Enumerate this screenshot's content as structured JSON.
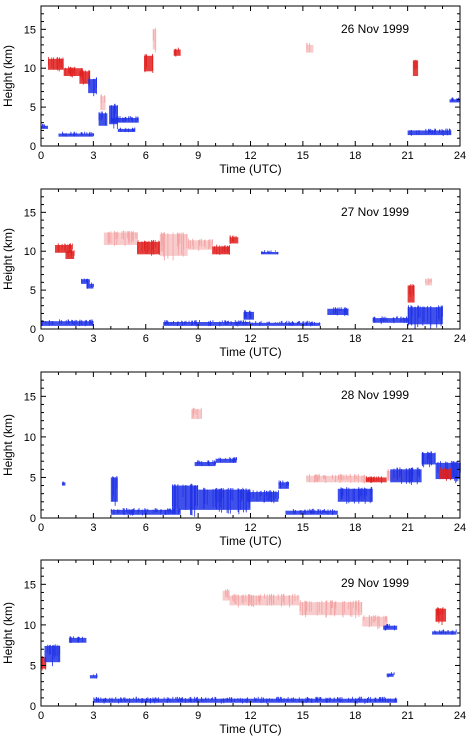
{
  "figure": {
    "panel_count": 4,
    "colors": {
      "red_echo": "#e0201f",
      "light_red_echo": "#f3a3a3",
      "blue_echo": "#1f31e6"
    }
  },
  "chart_data": [
    {
      "type": "heatmap",
      "title": "26 Nov 1999",
      "xlabel": "Time (UTC)",
      "ylabel": "Height (km)",
      "xlim": [
        0,
        24
      ],
      "ylim": [
        0,
        18
      ],
      "xticks": [
        "0",
        "3",
        "6",
        "9",
        "12",
        "15",
        "18",
        "21",
        "24"
      ],
      "yticks": [
        "0",
        "5",
        "10",
        "15"
      ],
      "features": [
        {
          "color": "red",
          "t0": 0.4,
          "t1": 1.3,
          "z0": 9.8,
          "z1": 11.2
        },
        {
          "color": "red",
          "t0": 1.3,
          "t1": 2.4,
          "z0": 9.0,
          "z1": 10.0
        },
        {
          "color": "red",
          "t0": 2.2,
          "t1": 2.8,
          "z0": 8.0,
          "z1": 9.6
        },
        {
          "color": "blue",
          "t0": 2.7,
          "t1": 3.2,
          "z0": 6.8,
          "z1": 8.6
        },
        {
          "color": "blue",
          "t0": 3.3,
          "t1": 3.8,
          "z0": 2.6,
          "z1": 4.2
        },
        {
          "color": "blue",
          "t0": 3.9,
          "t1": 4.4,
          "z0": 2.8,
          "z1": 5.2
        },
        {
          "color": "light_red",
          "t0": 3.4,
          "t1": 3.7,
          "z0": 4.6,
          "z1": 6.4
        },
        {
          "color": "blue",
          "t0": 4.0,
          "t1": 5.6,
          "z0": 3.0,
          "z1": 3.6
        },
        {
          "color": "red",
          "t0": 5.9,
          "t1": 6.4,
          "z0": 9.6,
          "z1": 11.6
        },
        {
          "color": "light_red",
          "t0": 6.4,
          "t1": 6.6,
          "z0": 12.4,
          "z1": 15.0
        },
        {
          "color": "red",
          "t0": 7.6,
          "t1": 8.0,
          "z0": 11.6,
          "z1": 12.4
        },
        {
          "color": "blue",
          "t0": 0.0,
          "t1": 0.4,
          "z0": 2.2,
          "z1": 2.6
        },
        {
          "color": "blue",
          "t0": 1.0,
          "t1": 3.0,
          "z0": 1.2,
          "z1": 1.6
        },
        {
          "color": "blue",
          "t0": 4.4,
          "t1": 5.4,
          "z0": 1.8,
          "z1": 2.2
        },
        {
          "color": "blue",
          "t0": 21.0,
          "t1": 23.5,
          "z0": 1.4,
          "z1": 2.0
        },
        {
          "color": "red",
          "t0": 21.3,
          "t1": 21.6,
          "z0": 9.0,
          "z1": 11.0
        },
        {
          "color": "light_red",
          "t0": 15.2,
          "t1": 15.6,
          "z0": 12.0,
          "z1": 13.0
        },
        {
          "color": "blue",
          "t0": 23.4,
          "t1": 24.0,
          "z0": 5.6,
          "z1": 6.0
        }
      ]
    },
    {
      "type": "heatmap",
      "title": "27 Nov 1999",
      "xlabel": "Time (UTC)",
      "ylabel": "Height (km)",
      "xlim": [
        0,
        24
      ],
      "ylim": [
        0,
        18
      ],
      "xticks": [
        "0",
        "3",
        "6",
        "9",
        "12",
        "15",
        "18",
        "21",
        "24"
      ],
      "yticks": [
        "0",
        "5",
        "10",
        "15"
      ],
      "features": [
        {
          "color": "red",
          "t0": 0.8,
          "t1": 1.8,
          "z0": 9.8,
          "z1": 10.8
        },
        {
          "color": "red",
          "t0": 1.4,
          "t1": 1.9,
          "z0": 9.0,
          "z1": 10.0
        },
        {
          "color": "light_red",
          "t0": 3.6,
          "t1": 5.5,
          "z0": 10.8,
          "z1": 12.4
        },
        {
          "color": "red",
          "t0": 5.5,
          "t1": 6.8,
          "z0": 9.6,
          "z1": 11.2
        },
        {
          "color": "light_red",
          "t0": 6.8,
          "t1": 8.4,
          "z0": 9.4,
          "z1": 12.2
        },
        {
          "color": "light_red",
          "t0": 8.4,
          "t1": 9.8,
          "z0": 10.2,
          "z1": 11.4
        },
        {
          "color": "red",
          "t0": 9.8,
          "t1": 10.8,
          "z0": 9.6,
          "z1": 10.6
        },
        {
          "color": "red",
          "t0": 10.8,
          "t1": 11.3,
          "z0": 11.0,
          "z1": 11.8
        },
        {
          "color": "blue",
          "t0": 12.6,
          "t1": 13.6,
          "z0": 9.6,
          "z1": 9.9
        },
        {
          "color": "blue",
          "t0": 2.3,
          "t1": 2.8,
          "z0": 5.8,
          "z1": 6.4
        },
        {
          "color": "blue",
          "t0": 2.6,
          "t1": 3.0,
          "z0": 5.2,
          "z1": 5.8
        },
        {
          "color": "blue",
          "t0": 0.0,
          "t1": 3.0,
          "z0": 0.4,
          "z1": 1.0
        },
        {
          "color": "blue",
          "t0": 7.0,
          "t1": 12.0,
          "z0": 0.4,
          "z1": 0.9
        },
        {
          "color": "blue",
          "t0": 11.6,
          "t1": 12.2,
          "z0": 1.2,
          "z1": 2.2
        },
        {
          "color": "blue",
          "t0": 12.0,
          "t1": 16.0,
          "z0": 0.4,
          "z1": 0.8
        },
        {
          "color": "blue",
          "t0": 16.4,
          "t1": 17.6,
          "z0": 1.8,
          "z1": 2.6
        },
        {
          "color": "blue",
          "t0": 19.0,
          "t1": 21.0,
          "z0": 0.8,
          "z1": 1.4
        },
        {
          "color": "blue",
          "t0": 21.0,
          "t1": 23.0,
          "z0": 0.6,
          "z1": 2.8
        },
        {
          "color": "red",
          "t0": 21.0,
          "t1": 21.4,
          "z0": 3.4,
          "z1": 5.6
        },
        {
          "color": "light_red",
          "t0": 22.0,
          "t1": 22.4,
          "z0": 5.6,
          "z1": 6.4
        }
      ]
    },
    {
      "type": "heatmap",
      "title": "28 Nov 1999",
      "xlabel": "Time (UTC)",
      "ylabel": "Height (km)",
      "xlim": [
        0,
        24
      ],
      "ylim": [
        0,
        18
      ],
      "xticks": [
        "0",
        "3",
        "6",
        "9",
        "12",
        "15",
        "18",
        "21",
        "24"
      ],
      "yticks": [
        "0",
        "5",
        "10",
        "15"
      ],
      "features": [
        {
          "color": "light_red",
          "t0": 8.6,
          "t1": 9.2,
          "z0": 12.2,
          "z1": 13.4
        },
        {
          "color": "blue",
          "t0": 1.2,
          "t1": 1.4,
          "z0": 4.0,
          "z1": 4.4
        },
        {
          "color": "blue",
          "t0": 4.0,
          "t1": 4.4,
          "z0": 2.0,
          "z1": 5.0
        },
        {
          "color": "blue",
          "t0": 4.0,
          "t1": 8.0,
          "z0": 0.4,
          "z1": 1.0
        },
        {
          "color": "blue",
          "t0": 8.8,
          "t1": 10.0,
          "z0": 6.4,
          "z1": 6.9
        },
        {
          "color": "blue",
          "t0": 10.0,
          "t1": 11.2,
          "z0": 6.8,
          "z1": 7.3
        },
        {
          "color": "blue",
          "t0": 7.5,
          "t1": 9.0,
          "z0": 1.0,
          "z1": 4.0
        },
        {
          "color": "blue",
          "t0": 9.0,
          "t1": 12.0,
          "z0": 1.0,
          "z1": 3.5
        },
        {
          "color": "blue",
          "t0": 11.8,
          "t1": 13.6,
          "z0": 2.0,
          "z1": 3.2
        },
        {
          "color": "blue",
          "t0": 13.6,
          "t1": 14.2,
          "z0": 3.6,
          "z1": 4.4
        },
        {
          "color": "blue",
          "t0": 14.0,
          "t1": 17.0,
          "z0": 0.4,
          "z1": 0.9
        },
        {
          "color": "blue",
          "t0": 17.0,
          "t1": 19.0,
          "z0": 2.0,
          "z1": 3.6
        },
        {
          "color": "light_red",
          "t0": 15.2,
          "t1": 18.6,
          "z0": 4.4,
          "z1": 5.2
        },
        {
          "color": "red",
          "t0": 18.6,
          "t1": 19.8,
          "z0": 4.4,
          "z1": 5.0
        },
        {
          "color": "light_red",
          "t0": 19.8,
          "t1": 21.2,
          "z0": 4.6,
          "z1": 5.8
        },
        {
          "color": "blue",
          "t0": 20.0,
          "t1": 21.8,
          "z0": 4.4,
          "z1": 6.0
        },
        {
          "color": "blue",
          "t0": 21.8,
          "t1": 22.6,
          "z0": 6.6,
          "z1": 8.0
        },
        {
          "color": "blue",
          "t0": 22.6,
          "t1": 24.0,
          "z0": 4.8,
          "z1": 6.8
        },
        {
          "color": "red",
          "t0": 22.8,
          "t1": 23.5,
          "z0": 4.8,
          "z1": 6.0
        }
      ]
    },
    {
      "type": "heatmap",
      "title": "29 Nov 1999",
      "xlabel": "Time (UTC)",
      "ylabel": "Height (km)",
      "xlim": [
        0,
        24
      ],
      "ylim": [
        0,
        18
      ],
      "xticks": [
        "0",
        "3",
        "6",
        "9",
        "12",
        "15",
        "18",
        "21",
        "24"
      ],
      "yticks": [
        "0",
        "5",
        "10",
        "15"
      ],
      "features": [
        {
          "color": "red",
          "t0": 0.0,
          "t1": 0.3,
          "z0": 4.6,
          "z1": 6.0
        },
        {
          "color": "blue",
          "t0": 0.2,
          "t1": 1.1,
          "z0": 5.4,
          "z1": 7.4
        },
        {
          "color": "blue",
          "t0": 1.6,
          "t1": 2.6,
          "z0": 7.8,
          "z1": 8.4
        },
        {
          "color": "light_red",
          "t0": 10.4,
          "t1": 10.8,
          "z0": 13.0,
          "z1": 14.2
        },
        {
          "color": "light_red",
          "t0": 10.8,
          "t1": 14.8,
          "z0": 12.4,
          "z1": 13.6
        },
        {
          "color": "light_red",
          "t0": 14.8,
          "t1": 18.4,
          "z0": 11.2,
          "z1": 12.8
        },
        {
          "color": "light_red",
          "t0": 18.4,
          "t1": 19.8,
          "z0": 9.8,
          "z1": 11.0
        },
        {
          "color": "blue",
          "t0": 19.6,
          "t1": 20.4,
          "z0": 9.4,
          "z1": 9.9
        },
        {
          "color": "blue",
          "t0": 22.4,
          "t1": 23.8,
          "z0": 8.8,
          "z1": 9.2
        },
        {
          "color": "red",
          "t0": 22.6,
          "t1": 23.2,
          "z0": 10.4,
          "z1": 12.0
        },
        {
          "color": "blue",
          "t0": 3.0,
          "t1": 12.0,
          "z0": 0.4,
          "z1": 0.9
        },
        {
          "color": "blue",
          "t0": 12.0,
          "t1": 20.4,
          "z0": 0.4,
          "z1": 0.9
        },
        {
          "color": "blue",
          "t0": 2.8,
          "t1": 3.2,
          "z0": 3.4,
          "z1": 3.8
        },
        {
          "color": "blue",
          "t0": 19.8,
          "t1": 20.2,
          "z0": 3.6,
          "z1": 4.0
        }
      ]
    }
  ]
}
